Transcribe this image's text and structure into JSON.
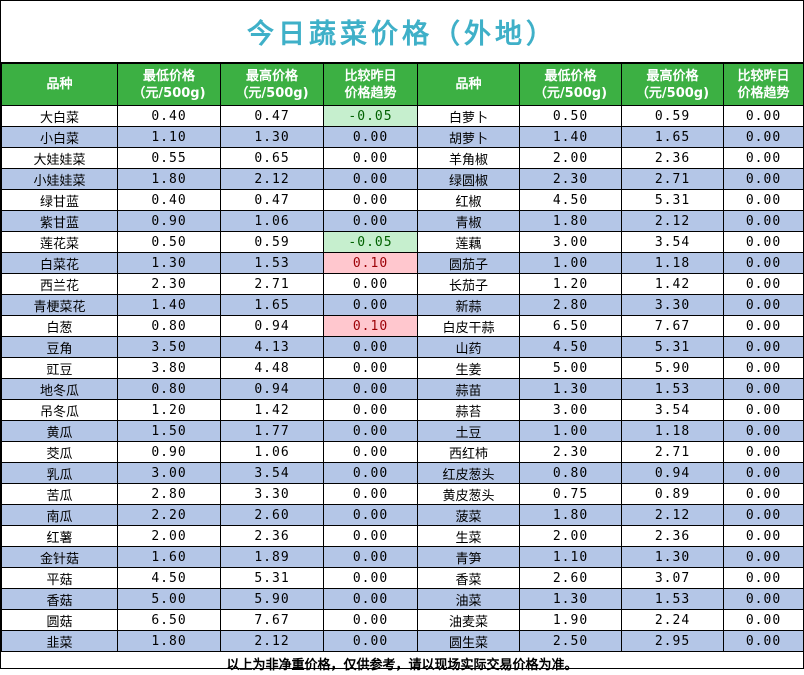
{
  "title": "今日蔬菜价格（外地）",
  "headers": {
    "name": "品种",
    "min_price": [
      "最低价格",
      "（元/500g)"
    ],
    "max_price": [
      "最高价格",
      "（元/500g)"
    ],
    "trend": [
      "比较昨日",
      "价格趋势"
    ]
  },
  "left": [
    {
      "name": "大白菜",
      "min": "0.40",
      "max": "0.47",
      "change": "-0.05"
    },
    {
      "name": "小白菜",
      "min": "1.10",
      "max": "1.30",
      "change": "0.00"
    },
    {
      "name": "大娃娃菜",
      "min": "0.55",
      "max": "0.65",
      "change": "0.00"
    },
    {
      "name": "小娃娃菜",
      "min": "1.80",
      "max": "2.12",
      "change": "0.00"
    },
    {
      "name": "绿甘蓝",
      "min": "0.40",
      "max": "0.47",
      "change": "0.00"
    },
    {
      "name": "紫甘蓝",
      "min": "0.90",
      "max": "1.06",
      "change": "0.00"
    },
    {
      "name": "莲花菜",
      "min": "0.50",
      "max": "0.59",
      "change": "-0.05"
    },
    {
      "name": "白菜花",
      "min": "1.30",
      "max": "1.53",
      "change": "0.10"
    },
    {
      "name": "西兰花",
      "min": "2.30",
      "max": "2.71",
      "change": "0.00"
    },
    {
      "name": "青梗菜花",
      "min": "1.40",
      "max": "1.65",
      "change": "0.00"
    },
    {
      "name": "白葱",
      "min": "0.80",
      "max": "0.94",
      "change": "0.10"
    },
    {
      "name": "豆角",
      "min": "3.50",
      "max": "4.13",
      "change": "0.00"
    },
    {
      "name": "豇豆",
      "min": "3.80",
      "max": "4.48",
      "change": "0.00"
    },
    {
      "name": "地冬瓜",
      "min": "0.80",
      "max": "0.94",
      "change": "0.00"
    },
    {
      "name": "吊冬瓜",
      "min": "1.20",
      "max": "1.42",
      "change": "0.00"
    },
    {
      "name": "黄瓜",
      "min": "1.50",
      "max": "1.77",
      "change": "0.00"
    },
    {
      "name": "茭瓜",
      "min": "0.90",
      "max": "1.06",
      "change": "0.00"
    },
    {
      "name": "乳瓜",
      "min": "3.00",
      "max": "3.54",
      "change": "0.00"
    },
    {
      "name": "苦瓜",
      "min": "2.80",
      "max": "3.30",
      "change": "0.00"
    },
    {
      "name": "南瓜",
      "min": "2.20",
      "max": "2.60",
      "change": "0.00"
    },
    {
      "name": "红薯",
      "min": "2.00",
      "max": "2.36",
      "change": "0.00"
    },
    {
      "name": "金针菇",
      "min": "1.60",
      "max": "1.89",
      "change": "0.00"
    },
    {
      "name": "平菇",
      "min": "4.50",
      "max": "5.31",
      "change": "0.00"
    },
    {
      "name": "香菇",
      "min": "5.00",
      "max": "5.90",
      "change": "0.00"
    },
    {
      "name": "圆菇",
      "min": "6.50",
      "max": "7.67",
      "change": "0.00"
    },
    {
      "name": "韭菜",
      "min": "1.80",
      "max": "2.12",
      "change": "0.00"
    }
  ],
  "right": [
    {
      "name": "白萝卜",
      "min": "0.50",
      "max": "0.59",
      "change": "0.00"
    },
    {
      "name": "胡萝卜",
      "min": "1.40",
      "max": "1.65",
      "change": "0.00"
    },
    {
      "name": "羊角椒",
      "min": "2.00",
      "max": "2.36",
      "change": "0.00"
    },
    {
      "name": "绿圆椒",
      "min": "2.30",
      "max": "2.71",
      "change": "0.00"
    },
    {
      "name": "红椒",
      "min": "4.50",
      "max": "5.31",
      "change": "0.00"
    },
    {
      "name": "青椒",
      "min": "1.80",
      "max": "2.12",
      "change": "0.00"
    },
    {
      "name": "莲藕",
      "min": "3.00",
      "max": "3.54",
      "change": "0.00"
    },
    {
      "name": "圆茄子",
      "min": "1.00",
      "max": "1.18",
      "change": "0.00"
    },
    {
      "name": "长茄子",
      "min": "1.20",
      "max": "1.42",
      "change": "0.00"
    },
    {
      "name": "新蒜",
      "min": "2.80",
      "max": "3.30",
      "change": "0.00"
    },
    {
      "name": "白皮干蒜",
      "min": "6.50",
      "max": "7.67",
      "change": "0.00"
    },
    {
      "name": "山药",
      "min": "4.50",
      "max": "5.31",
      "change": "0.00"
    },
    {
      "name": "生姜",
      "min": "5.00",
      "max": "5.90",
      "change": "0.00"
    },
    {
      "name": "蒜苗",
      "min": "1.30",
      "max": "1.53",
      "change": "0.00"
    },
    {
      "name": "蒜苔",
      "min": "3.00",
      "max": "3.54",
      "change": "0.00"
    },
    {
      "name": "土豆",
      "min": "1.00",
      "max": "1.18",
      "change": "0.00"
    },
    {
      "name": "西红柿",
      "min": "2.30",
      "max": "2.71",
      "change": "0.00"
    },
    {
      "name": "红皮葱头",
      "min": "0.80",
      "max": "0.94",
      "change": "0.00"
    },
    {
      "name": "黄皮葱头",
      "min": "0.75",
      "max": "0.89",
      "change": "0.00"
    },
    {
      "name": "菠菜",
      "min": "1.80",
      "max": "2.12",
      "change": "0.00"
    },
    {
      "name": "生菜",
      "min": "2.00",
      "max": "2.36",
      "change": "0.00"
    },
    {
      "name": "青笋",
      "min": "1.10",
      "max": "1.30",
      "change": "0.00"
    },
    {
      "name": "香菜",
      "min": "2.60",
      "max": "3.07",
      "change": "0.00"
    },
    {
      "name": "油菜",
      "min": "1.30",
      "max": "1.53",
      "change": "0.00"
    },
    {
      "name": "油麦菜",
      "min": "1.90",
      "max": "2.24",
      "change": "0.00"
    },
    {
      "name": "圆生菜",
      "min": "2.50",
      "max": "2.95",
      "change": "0.00"
    }
  ],
  "colors": {
    "title": "#3fb0c8",
    "header_bg": "#3cb043",
    "stripe": "#b4c6e7",
    "decrease_bg": "#c6efce",
    "increase_bg": "#ffc7ce"
  },
  "footer": "以上为非净重价格，仅供参考，请以现场实际交易价格为准。"
}
